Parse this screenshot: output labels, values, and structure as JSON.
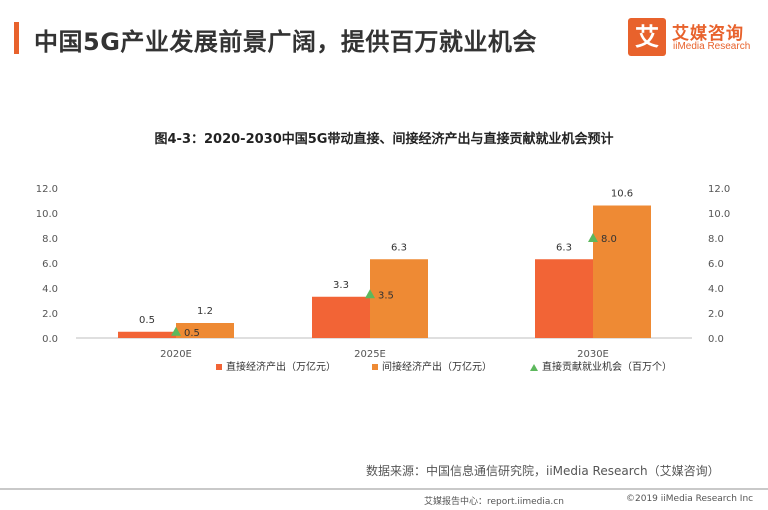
{
  "header": {
    "title": "中国5G产业发展前景广阔，提供百万就业机会",
    "logo_mark": "艾",
    "logo_cn": "艾媒咨询",
    "logo_en": "iiMedia Research"
  },
  "chart_data": {
    "type": "bar",
    "title": "图4-3：2020-2030中国5G带动直接、间接经济产出与直接贡献就业机会预计",
    "categories": [
      "2020E",
      "2025E",
      "2030E"
    ],
    "series": [
      {
        "name": "直接经济产出（万亿元）",
        "type": "bar",
        "color": "#f26436",
        "values": [
          0.5,
          3.3,
          6.3
        ],
        "labels": [
          "0.5",
          "3.3",
          "6.3"
        ]
      },
      {
        "name": "间接经济产出（万亿元）",
        "type": "bar",
        "color": "#ee8a34",
        "values": [
          1.2,
          6.3,
          10.6
        ],
        "labels": [
          "1.2",
          "6.3",
          "10.6"
        ]
      },
      {
        "name": "直接贡献就业机会（百万个）",
        "type": "scatter",
        "color": "#5db85d",
        "values": [
          0.5,
          3.5,
          8.0
        ],
        "labels": [
          "0.5",
          "3.5",
          "8.0"
        ]
      }
    ],
    "y_ticks": [
      "0.0",
      "2.0",
      "4.0",
      "6.0",
      "8.0",
      "10.0",
      "12.0"
    ],
    "ylim": [
      0,
      12
    ],
    "y2_ticks": [
      "0.0",
      "2.0",
      "4.0",
      "6.0",
      "8.0",
      "10.0",
      "12.0"
    ],
    "y2lim": [
      0,
      12
    ],
    "legend_position": "bottom",
    "grid": false
  },
  "source": "数据来源：中国信息通信研究院，iiMedia Research（艾媒咨询）",
  "footer": {
    "left": "艾媒报告中心：report.iimedia.cn",
    "right": "©2019  iiMedia Research  Inc"
  }
}
